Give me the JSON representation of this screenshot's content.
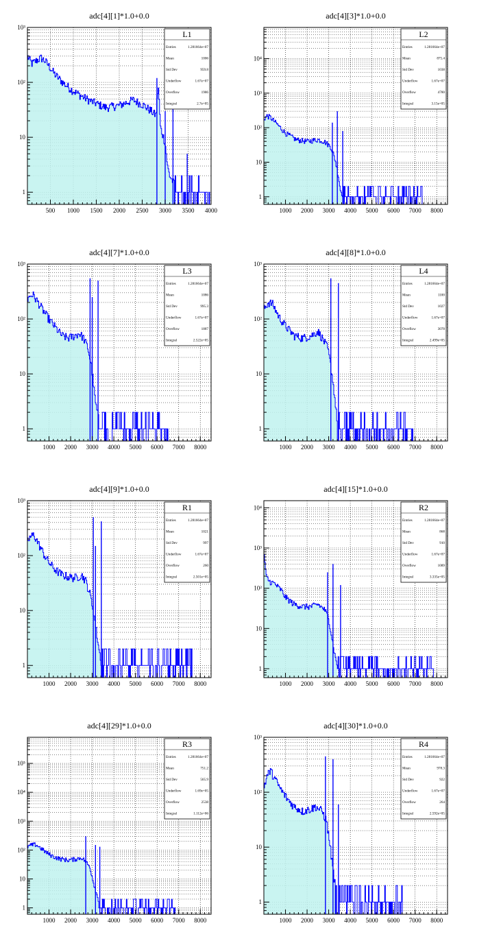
{
  "stats_labels": {
    "entries": "Entries",
    "mean": "Mean",
    "std_dev": "Std Dev",
    "underflow": "Underflow",
    "overflow": "Overflow",
    "integral": "Integral"
  },
  "colors": {
    "fill": "#bff2ef",
    "line": "#0000ff",
    "grid": "#000000",
    "frame": "#000000"
  },
  "chart_data": [
    {
      "type": "area",
      "title": "adc[4][1]*1.0+0.0",
      "stats_title": "L1",
      "stats": {
        "entries": "1.281664e+07",
        "mean": "1006",
        "std_dev": "959.8",
        "underflow": "1.67e+07",
        "overflow": "1986",
        "integral": "2.7e+05"
      },
      "xlim": [
        0,
        4000
      ],
      "xticks": [
        500,
        1000,
        1500,
        2000,
        2500,
        3000,
        3500,
        4000
      ],
      "ylim": [
        0.6,
        1000
      ],
      "yscale": "log",
      "yticks": [
        {
          "value": 1,
          "label": "1"
        },
        {
          "value": 10,
          "label": "10"
        },
        {
          "value": 100,
          "label": "10²"
        },
        {
          "value": 1000,
          "label": "10³"
        }
      ],
      "grid": true,
      "legend": "top-right",
      "points": [
        [
          0,
          300
        ],
        [
          100,
          220
        ],
        [
          200,
          250
        ],
        [
          300,
          280
        ],
        [
          400,
          240
        ],
        [
          600,
          140
        ],
        [
          800,
          95
        ],
        [
          1000,
          70
        ],
        [
          1200,
          55
        ],
        [
          1400,
          45
        ],
        [
          1700,
          35
        ],
        [
          2000,
          38
        ],
        [
          2300,
          48
        ],
        [
          2500,
          40
        ],
        [
          2700,
          30
        ],
        [
          2800,
          25
        ],
        [
          2850,
          90
        ],
        [
          2900,
          15
        ],
        [
          3000,
          8
        ],
        [
          3050,
          3
        ],
        [
          3100,
          2
        ],
        [
          3200,
          1.4
        ],
        [
          3500,
          1
        ],
        [
          4000,
          1
        ]
      ],
      "spikes": [
        [
          2820,
          120
        ],
        [
          3000,
          30
        ],
        [
          3170,
          130
        ],
        [
          3480,
          5
        ]
      ],
      "noise_from": 3200,
      "noise_to": 4000
    },
    {
      "type": "area",
      "title": "adc[4][3]*1.0+0.0",
      "stats_title": "L2",
      "stats": {
        "entries": "1.281664e+07",
        "mean": "875.4",
        "std_dev": "1038",
        "underflow": "1.67e+07",
        "overflow": "4780",
        "integral": "3.15e+05"
      },
      "xlim": [
        0,
        8500
      ],
      "xticks": [
        1000,
        2000,
        3000,
        4000,
        5000,
        6000,
        7000,
        8000
      ],
      "ylim": [
        0.6,
        80000
      ],
      "yscale": "log",
      "yticks": [
        {
          "value": 1,
          "label": "1"
        },
        {
          "value": 10,
          "label": "10"
        },
        {
          "value": 100,
          "label": "10²"
        },
        {
          "value": 1000,
          "label": "10³"
        },
        {
          "value": 10000,
          "label": "10⁴"
        }
      ],
      "grid": true,
      "legend": "top-right",
      "points": [
        [
          0,
          180
        ],
        [
          150,
          220
        ],
        [
          300,
          200
        ],
        [
          600,
          130
        ],
        [
          1000,
          70
        ],
        [
          1500,
          45
        ],
        [
          2000,
          40
        ],
        [
          2500,
          45
        ],
        [
          2800,
          40
        ],
        [
          3100,
          28
        ],
        [
          3300,
          12
        ],
        [
          3450,
          4
        ],
        [
          3550,
          1.5
        ],
        [
          3700,
          1
        ],
        [
          8500,
          1
        ]
      ],
      "spikes": [
        [
          3170,
          140
        ],
        [
          3400,
          300
        ],
        [
          3650,
          80
        ]
      ],
      "noise_from": 3600,
      "noise_to": 7300
    },
    {
      "type": "area",
      "title": "adc[4][7]*1.0+0.0",
      "stats_title": "L3",
      "stats": {
        "entries": "1.281664e+07",
        "mean": "1086",
        "std_dev": "995.3",
        "underflow": "1.67e+07",
        "overflow": "1887",
        "integral": "2.522e+05"
      },
      "xlim": [
        0,
        8500
      ],
      "xticks": [
        1000,
        2000,
        3000,
        4000,
        5000,
        6000,
        7000,
        8000
      ],
      "ylim": [
        0.6,
        1000
      ],
      "yscale": "log",
      "yticks": [
        {
          "value": 1,
          "label": "1"
        },
        {
          "value": 10,
          "label": "10"
        },
        {
          "value": 100,
          "label": "10²"
        },
        {
          "value": 1000,
          "label": "10³"
        }
      ],
      "grid": true,
      "legend": "top-right",
      "points": [
        [
          0,
          220
        ],
        [
          100,
          260
        ],
        [
          250,
          280
        ],
        [
          500,
          200
        ],
        [
          800,
          130
        ],
        [
          1000,
          100
        ],
        [
          1300,
          70
        ],
        [
          1600,
          50
        ],
        [
          1900,
          45
        ],
        [
          2200,
          50
        ],
        [
          2400,
          55
        ],
        [
          2600,
          45
        ],
        [
          2800,
          30
        ],
        [
          2950,
          15
        ],
        [
          3050,
          7
        ],
        [
          3150,
          3
        ],
        [
          3300,
          1.5
        ],
        [
          3400,
          1
        ],
        [
          8500,
          1
        ]
      ],
      "spikes": [
        [
          2900,
          550
        ],
        [
          3000,
          250
        ],
        [
          3270,
          500
        ]
      ],
      "noise_from": 3300,
      "noise_to": 6500
    },
    {
      "type": "area",
      "title": "adc[4][8]*1.0+0.0",
      "stats_title": "L4",
      "stats": {
        "entries": "1.281664e+07",
        "mean": "1100",
        "std_dev": "1027",
        "underflow": "1.67e+07",
        "overflow": "3078",
        "integral": "2.499e+05"
      },
      "xlim": [
        0,
        8500
      ],
      "xticks": [
        1000,
        2000,
        3000,
        4000,
        5000,
        6000,
        7000,
        8000
      ],
      "ylim": [
        0.6,
        1000
      ],
      "yscale": "log",
      "yticks": [
        {
          "value": 1,
          "label": "1"
        },
        {
          "value": 10,
          "label": "10"
        },
        {
          "value": 100,
          "label": "10²"
        },
        {
          "value": 1000,
          "label": "10³"
        }
      ],
      "grid": true,
      "legend": "top-right",
      "points": [
        [
          0,
          150
        ],
        [
          200,
          200
        ],
        [
          400,
          190
        ],
        [
          700,
          110
        ],
        [
          1000,
          75
        ],
        [
          1400,
          50
        ],
        [
          1800,
          45
        ],
        [
          2200,
          50
        ],
        [
          2500,
          60
        ],
        [
          2700,
          45
        ],
        [
          2950,
          30
        ],
        [
          3100,
          14
        ],
        [
          3250,
          5
        ],
        [
          3350,
          2
        ],
        [
          3450,
          1
        ],
        [
          8500,
          1
        ]
      ],
      "spikes": [
        [
          3100,
          550
        ],
        [
          3450,
          450
        ]
      ],
      "noise_from": 3400,
      "noise_to": 6900
    },
    {
      "type": "area",
      "title": "adc[4][9]*1.0+0.0",
      "stats_title": "R1",
      "stats": {
        "entries": "1.281664e+07",
        "mean": "1021",
        "std_dev": "997",
        "underflow": "1.67e+07",
        "overflow": "260",
        "integral": "2.501e+05"
      },
      "xlim": [
        0,
        8500
      ],
      "xticks": [
        1000,
        2000,
        3000,
        4000,
        5000,
        6000,
        7000,
        8000
      ],
      "ylim": [
        0.6,
        1000
      ],
      "yscale": "log",
      "yticks": [
        {
          "value": 1,
          "label": "1"
        },
        {
          "value": 10,
          "label": "10"
        },
        {
          "value": 100,
          "label": "10²"
        },
        {
          "value": 1000,
          "label": "10³"
        }
      ],
      "grid": true,
      "legend": "top-right",
      "points": [
        [
          0,
          180
        ],
        [
          150,
          220
        ],
        [
          300,
          240
        ],
        [
          500,
          170
        ],
        [
          800,
          100
        ],
        [
          1000,
          75
        ],
        [
          1300,
          55
        ],
        [
          1600,
          45
        ],
        [
          2000,
          40
        ],
        [
          2300,
          40
        ],
        [
          2500,
          45
        ],
        [
          2700,
          35
        ],
        [
          2900,
          20
        ],
        [
          3050,
          10
        ],
        [
          3200,
          4
        ],
        [
          3350,
          1.6
        ],
        [
          3500,
          1
        ],
        [
          8500,
          1
        ]
      ],
      "spikes": [
        [
          3050,
          500
        ],
        [
          3150,
          150
        ],
        [
          3420,
          420
        ]
      ],
      "noise_from": 3400,
      "noise_to": 7600
    },
    {
      "type": "area",
      "title": "adc[4][15]*1.0+0.0",
      "stats_title": "R2",
      "stats": {
        "entries": "1.281664e+07",
        "mean": "868",
        "std_dev": "910",
        "underflow": "1.67e+07",
        "overflow": "1089",
        "integral": "3.335e+05"
      },
      "xlim": [
        0,
        8500
      ],
      "xticks": [
        1000,
        2000,
        3000,
        4000,
        5000,
        6000,
        7000,
        8000
      ],
      "ylim": [
        0.6,
        15000
      ],
      "yscale": "log",
      "yticks": [
        {
          "value": 1,
          "label": "1"
        },
        {
          "value": 10,
          "label": "10"
        },
        {
          "value": 100,
          "label": "10²"
        },
        {
          "value": 1000,
          "label": "10³"
        },
        {
          "value": 10000,
          "label": "10⁴"
        }
      ],
      "grid": true,
      "legend": "top-right",
      "points": [
        [
          0,
          900
        ],
        [
          100,
          200
        ],
        [
          250,
          150
        ],
        [
          500,
          130
        ],
        [
          800,
          90
        ],
        [
          1000,
          60
        ],
        [
          1400,
          40
        ],
        [
          1800,
          35
        ],
        [
          2200,
          35
        ],
        [
          2500,
          40
        ],
        [
          2800,
          30
        ],
        [
          3000,
          18
        ],
        [
          3150,
          6
        ],
        [
          3300,
          2
        ],
        [
          3450,
          1
        ],
        [
          8500,
          1
        ]
      ],
      "spikes": [
        [
          2950,
          250
        ],
        [
          3200,
          400
        ],
        [
          3550,
          120
        ]
      ],
      "noise_from": 3400,
      "noise_to": 7900
    },
    {
      "type": "area",
      "title": "adc[4][29]*1.0+0.0",
      "stats_title": "R3",
      "stats": {
        "entries": "1.281664e+07",
        "mean": "751.2",
        "std_dev": "565.9",
        "underflow": "1.69e+05",
        "overflow": "2538",
        "integral": "1.112e+06"
      },
      "xlim": [
        0,
        8500
      ],
      "xticks": [
        1000,
        2000,
        3000,
        4000,
        5000,
        6000,
        7000,
        8000
      ],
      "ylim": [
        0.6,
        800000
      ],
      "yscale": "log",
      "yticks": [
        {
          "value": 1,
          "label": "1"
        },
        {
          "value": 10,
          "label": "10"
        },
        {
          "value": 100,
          "label": "10²"
        },
        {
          "value": 1000,
          "label": "10³"
        },
        {
          "value": 10000,
          "label": "10⁴"
        },
        {
          "value": 100000,
          "label": "10⁵"
        }
      ],
      "grid": true,
      "legend": "top-right",
      "points": [
        [
          0,
          130
        ],
        [
          200,
          150
        ],
        [
          400,
          155
        ],
        [
          600,
          120
        ],
        [
          900,
          80
        ],
        [
          1200,
          60
        ],
        [
          1500,
          50
        ],
        [
          1900,
          45
        ],
        [
          2300,
          50
        ],
        [
          2500,
          55
        ],
        [
          2700,
          40
        ],
        [
          2900,
          25
        ],
        [
          3050,
          8
        ],
        [
          3200,
          3
        ],
        [
          3350,
          1.5
        ],
        [
          3500,
          1
        ],
        [
          8500,
          1
        ]
      ],
      "spikes": [
        [
          2700,
          300
        ],
        [
          3150,
          150
        ],
        [
          3350,
          130
        ]
      ],
      "noise_from": 3300,
      "noise_to": 6800
    },
    {
      "type": "area",
      "title": "adc[4][30]*1.0+0.0",
      "stats_title": "R4",
      "stats": {
        "entries": "1.281664e+07",
        "mean": "978.3",
        "std_dev": "922",
        "underflow": "1.67e+07",
        "overflow": "264",
        "integral": "2.592e+05"
      },
      "xlim": [
        0,
        8500
      ],
      "xticks": [
        1000,
        2000,
        3000,
        4000,
        5000,
        6000,
        7000,
        8000
      ],
      "ylim": [
        0.6,
        1000
      ],
      "yscale": "log",
      "yticks": [
        {
          "value": 1,
          "label": "1"
        },
        {
          "value": 10,
          "label": "10"
        },
        {
          "value": 100,
          "label": "10²"
        },
        {
          "value": 1000,
          "label": "10³"
        }
      ],
      "grid": true,
      "legend": "top-right",
      "points": [
        [
          0,
          120
        ],
        [
          150,
          200
        ],
        [
          300,
          250
        ],
        [
          500,
          180
        ],
        [
          800,
          110
        ],
        [
          1100,
          75
        ],
        [
          1400,
          55
        ],
        [
          1800,
          45
        ],
        [
          2200,
          50
        ],
        [
          2400,
          55
        ],
        [
          2700,
          45
        ],
        [
          2900,
          30
        ],
        [
          3050,
          12
        ],
        [
          3200,
          4
        ],
        [
          3300,
          2
        ],
        [
          3400,
          1
        ],
        [
          8500,
          1
        ]
      ],
      "spikes": [
        [
          2850,
          450
        ],
        [
          3200,
          400
        ],
        [
          3450,
          60
        ]
      ],
      "noise_from": 3300,
      "noise_to": 6400
    }
  ]
}
